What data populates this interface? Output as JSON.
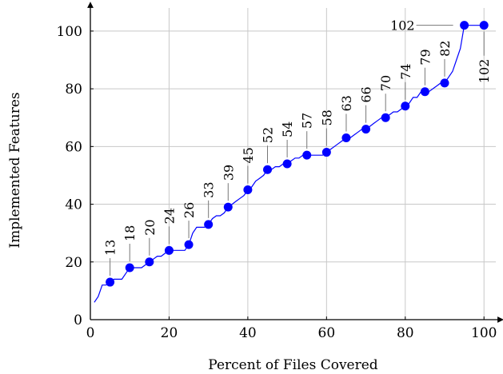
{
  "chart_data": {
    "type": "line",
    "title": "",
    "xlabel": "Percent of Files Covered",
    "ylabel": "Implemented Features",
    "xlim": [
      0,
      103
    ],
    "ylim": [
      0,
      108
    ],
    "xticks": [
      0,
      20,
      40,
      60,
      80,
      100
    ],
    "yticks": [
      0,
      20,
      40,
      60,
      80,
      100
    ],
    "grid": true,
    "series_color": "#0000ff",
    "marker_color": "#0000ff",
    "line": {
      "x": [
        1,
        2,
        3,
        4,
        5,
        6,
        7,
        8,
        9,
        10,
        11,
        12,
        13,
        14,
        15,
        16,
        17,
        18,
        19,
        20,
        21,
        22,
        23,
        24,
        25,
        26,
        27,
        28,
        29,
        30,
        31,
        32,
        33,
        34,
        35,
        36,
        37,
        38,
        39,
        40,
        41,
        42,
        43,
        44,
        45,
        46,
        47,
        48,
        49,
        50,
        51,
        52,
        53,
        54,
        55,
        56,
        57,
        58,
        59,
        60,
        61,
        62,
        63,
        64,
        65,
        66,
        67,
        68,
        69,
        70,
        71,
        72,
        73,
        74,
        75,
        76,
        77,
        78,
        79,
        80,
        81,
        82,
        83,
        84,
        85,
        86,
        87,
        88,
        89,
        90,
        91,
        92,
        93,
        94,
        95,
        96,
        97,
        98,
        99,
        100
      ],
      "y": [
        6,
        8,
        12,
        12,
        13,
        14,
        14,
        14,
        16,
        18,
        18,
        18,
        18,
        19,
        20,
        21,
        22,
        22,
        23,
        24,
        24,
        24,
        24,
        24,
        26,
        30,
        32,
        32,
        32,
        33,
        35,
        36,
        36,
        37,
        39,
        40,
        41,
        42,
        43,
        45,
        46,
        48,
        49,
        50,
        52,
        52,
        53,
        53,
        54,
        54,
        55,
        56,
        56,
        57,
        57,
        57,
        57,
        57,
        57,
        58,
        59,
        60,
        61,
        62,
        63,
        63,
        64,
        65,
        66,
        66,
        67,
        68,
        69,
        70,
        70,
        71,
        72,
        72,
        73,
        74,
        75,
        77,
        77,
        79,
        79,
        79,
        80,
        81,
        82,
        82,
        84,
        86,
        90,
        94,
        102,
        102,
        102,
        102,
        102,
        102
      ]
    },
    "markers": [
      {
        "x": 5,
        "y": 13,
        "label": "13"
      },
      {
        "x": 10,
        "y": 18,
        "label": "18"
      },
      {
        "x": 15,
        "y": 20,
        "label": "20"
      },
      {
        "x": 20,
        "y": 24,
        "label": "24"
      },
      {
        "x": 25,
        "y": 26,
        "label": "26"
      },
      {
        "x": 30,
        "y": 33,
        "label": "33"
      },
      {
        "x": 35,
        "y": 39,
        "label": "39"
      },
      {
        "x": 40,
        "y": 45,
        "label": "45"
      },
      {
        "x": 45,
        "y": 52,
        "label": "52"
      },
      {
        "x": 50,
        "y": 54,
        "label": "54"
      },
      {
        "x": 55,
        "y": 57,
        "label": "57"
      },
      {
        "x": 60,
        "y": 58,
        "label": "58"
      },
      {
        "x": 65,
        "y": 63,
        "label": "63"
      },
      {
        "x": 70,
        "y": 66,
        "label": "66"
      },
      {
        "x": 75,
        "y": 70,
        "label": "70"
      },
      {
        "x": 80,
        "y": 74,
        "label": "74"
      },
      {
        "x": 85,
        "y": 79,
        "label": "79"
      },
      {
        "x": 90,
        "y": 82,
        "label": "82"
      },
      {
        "x": 95,
        "y": 102,
        "label": "102"
      },
      {
        "x": 100,
        "y": 102,
        "label": "102"
      }
    ]
  }
}
